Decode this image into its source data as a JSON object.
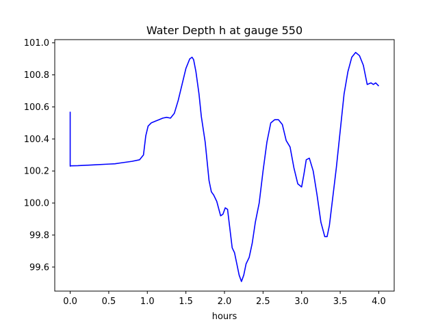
{
  "chart_data": {
    "type": "line",
    "title": "Water Depth h at gauge 550",
    "xlabel": "hours",
    "ylabel": "",
    "xlim": [
      -0.2,
      4.2
    ],
    "ylim": [
      99.45,
      101.02
    ],
    "xticks": [
      0.0,
      0.5,
      1.0,
      1.5,
      2.0,
      2.5,
      3.0,
      3.5,
      4.0
    ],
    "xtick_labels": [
      "0.0",
      "0.5",
      "1.0",
      "1.5",
      "2.0",
      "2.5",
      "3.0",
      "3.5",
      "4.0"
    ],
    "yticks": [
      99.6,
      99.8,
      100.0,
      100.2,
      100.4,
      100.6,
      100.8,
      101.0
    ],
    "ytick_labels": [
      "99.6",
      "99.8",
      "100.0",
      "100.2",
      "100.4",
      "100.6",
      "100.8",
      "101.0"
    ],
    "grid": false,
    "series": [
      {
        "color": "#0000ff",
        "x": [
          0.0,
          0.0,
          0.001,
          0.1,
          0.3,
          0.5,
          0.58,
          0.65,
          0.8,
          0.9,
          0.95,
          0.98,
          1.01,
          1.05,
          1.1,
          1.15,
          1.2,
          1.25,
          1.3,
          1.35,
          1.4,
          1.45,
          1.5,
          1.55,
          1.58,
          1.6,
          1.63,
          1.67,
          1.7,
          1.75,
          1.8,
          1.83,
          1.86,
          1.9,
          1.95,
          1.98,
          2.01,
          2.04,
          2.07,
          2.1,
          2.13,
          2.16,
          2.19,
          2.22,
          2.25,
          2.28,
          2.32,
          2.36,
          2.4,
          2.45,
          2.5,
          2.55,
          2.6,
          2.65,
          2.7,
          2.75,
          2.8,
          2.85,
          2.9,
          2.95,
          3.0,
          3.03,
          3.06,
          3.1,
          3.15,
          3.2,
          3.25,
          3.3,
          3.33,
          3.36,
          3.4,
          3.45,
          3.5,
          3.55,
          3.6,
          3.65,
          3.7,
          3.75,
          3.8,
          3.85,
          3.9,
          3.93,
          3.96,
          4.0
        ],
        "y": [
          100.57,
          100.23,
          100.232,
          100.233,
          100.238,
          100.243,
          100.245,
          100.25,
          100.26,
          100.27,
          100.3,
          100.42,
          100.48,
          100.5,
          100.51,
          100.52,
          100.53,
          100.535,
          100.53,
          100.56,
          100.64,
          100.74,
          100.84,
          100.9,
          100.91,
          100.895,
          100.82,
          100.68,
          100.54,
          100.38,
          100.14,
          100.07,
          100.05,
          100.01,
          99.92,
          99.93,
          99.97,
          99.96,
          99.84,
          99.72,
          99.69,
          99.62,
          99.55,
          99.51,
          99.55,
          99.62,
          99.66,
          99.75,
          99.88,
          100.0,
          100.2,
          100.38,
          100.5,
          100.52,
          100.52,
          100.49,
          100.39,
          100.35,
          100.22,
          100.12,
          100.1,
          100.18,
          100.27,
          100.28,
          100.2,
          100.05,
          99.88,
          99.79,
          99.79,
          99.86,
          100.02,
          100.22,
          100.45,
          100.68,
          100.82,
          100.91,
          100.94,
          100.92,
          100.86,
          100.74,
          100.75,
          100.74,
          100.75,
          100.73
        ]
      }
    ]
  }
}
